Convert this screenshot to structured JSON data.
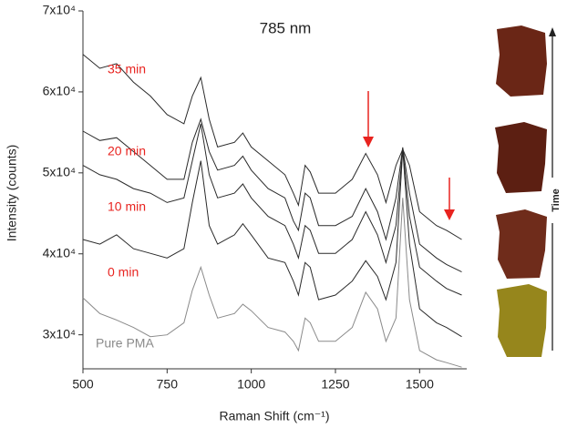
{
  "chart_data": {
    "type": "line",
    "title": "785 nm",
    "x_label": "Raman Shift (cm⁻¹)",
    "y_label": "Intensity (counts)",
    "side_label": "Time",
    "x": [
      500,
      550,
      600,
      650,
      700,
      750,
      800,
      825,
      850,
      875,
      900,
      950,
      975,
      1000,
      1050,
      1100,
      1125,
      1140,
      1160,
      1175,
      1200,
      1250,
      1300,
      1340,
      1375,
      1400,
      1430,
      1450,
      1470,
      1500,
      1550,
      1580,
      1625
    ],
    "series": [
      {
        "name": "Pure PMA",
        "color": "#8a8a8a",
        "label_color": "#8a8a8a",
        "values": [
          34570,
          32630,
          31830,
          30910,
          29770,
          30000,
          31490,
          35490,
          38340,
          34910,
          32060,
          32630,
          33770,
          32970,
          30910,
          30340,
          29200,
          28060,
          32060,
          31490,
          29200,
          29200,
          30910,
          35260,
          33200,
          29200,
          32060,
          46910,
          34340,
          28060,
          26910,
          26570,
          26000
        ]
      },
      {
        "name": "0 min",
        "color": "#2a2a2a",
        "label_color": "#e8231f",
        "values": [
          41770,
          41200,
          42340,
          40630,
          40060,
          39490,
          40630,
          46340,
          51490,
          43490,
          41200,
          42340,
          43720,
          42340,
          39490,
          38920,
          36630,
          34910,
          38920,
          38340,
          34340,
          34910,
          36630,
          39150,
          37200,
          34340,
          38920,
          52920,
          41200,
          33200,
          31490,
          30910,
          29770
        ]
      },
      {
        "name": "10 min",
        "color": "#2a2a2a",
        "label_color": "#e8231f",
        "values": [
          50920,
          49770,
          49200,
          48060,
          47490,
          46340,
          46910,
          51490,
          56060,
          49770,
          46910,
          47490,
          48630,
          46910,
          44630,
          43490,
          41200,
          39490,
          43490,
          42910,
          40060,
          40060,
          41770,
          45200,
          42340,
          38920,
          43490,
          52920,
          44630,
          38340,
          36630,
          35720,
          34910
        ]
      },
      {
        "name": "20 min",
        "color": "#2a2a2a",
        "label_color": "#e8231f",
        "values": [
          55150,
          54000,
          54340,
          52630,
          50920,
          49200,
          49200,
          53770,
          56630,
          52630,
          50340,
          50920,
          52060,
          50340,
          48060,
          46910,
          44060,
          42910,
          47490,
          46910,
          43490,
          43490,
          44630,
          48060,
          45200,
          41770,
          46910,
          53150,
          47490,
          41200,
          39490,
          38690,
          37770
        ]
      },
      {
        "name": "35 min",
        "color": "#2a2a2a",
        "label_color": "#e8231f",
        "values": [
          64630,
          62920,
          63490,
          61200,
          59490,
          57200,
          56060,
          59490,
          61770,
          56630,
          53200,
          53770,
          54920,
          53200,
          51490,
          49770,
          47490,
          46000,
          50920,
          50120,
          47490,
          47490,
          49200,
          52400,
          49770,
          46340,
          50920,
          52920,
          50920,
          45200,
          43490,
          42910,
          41770
        ]
      }
    ],
    "xlim": [
      500,
      1640
    ],
    "ylim": [
      25800,
      70000
    ],
    "xticks": [
      500,
      750,
      1000,
      1250,
      1500
    ],
    "yticks": [
      {
        "value": 30000,
        "label": "3x10⁴"
      },
      {
        "value": 40000,
        "label": "4x10⁴"
      },
      {
        "value": 50000,
        "label": "5x10⁴"
      },
      {
        "value": 60000,
        "label": "6x10⁴"
      },
      {
        "value": 70000,
        "label": "7x10⁴"
      }
    ]
  }
}
